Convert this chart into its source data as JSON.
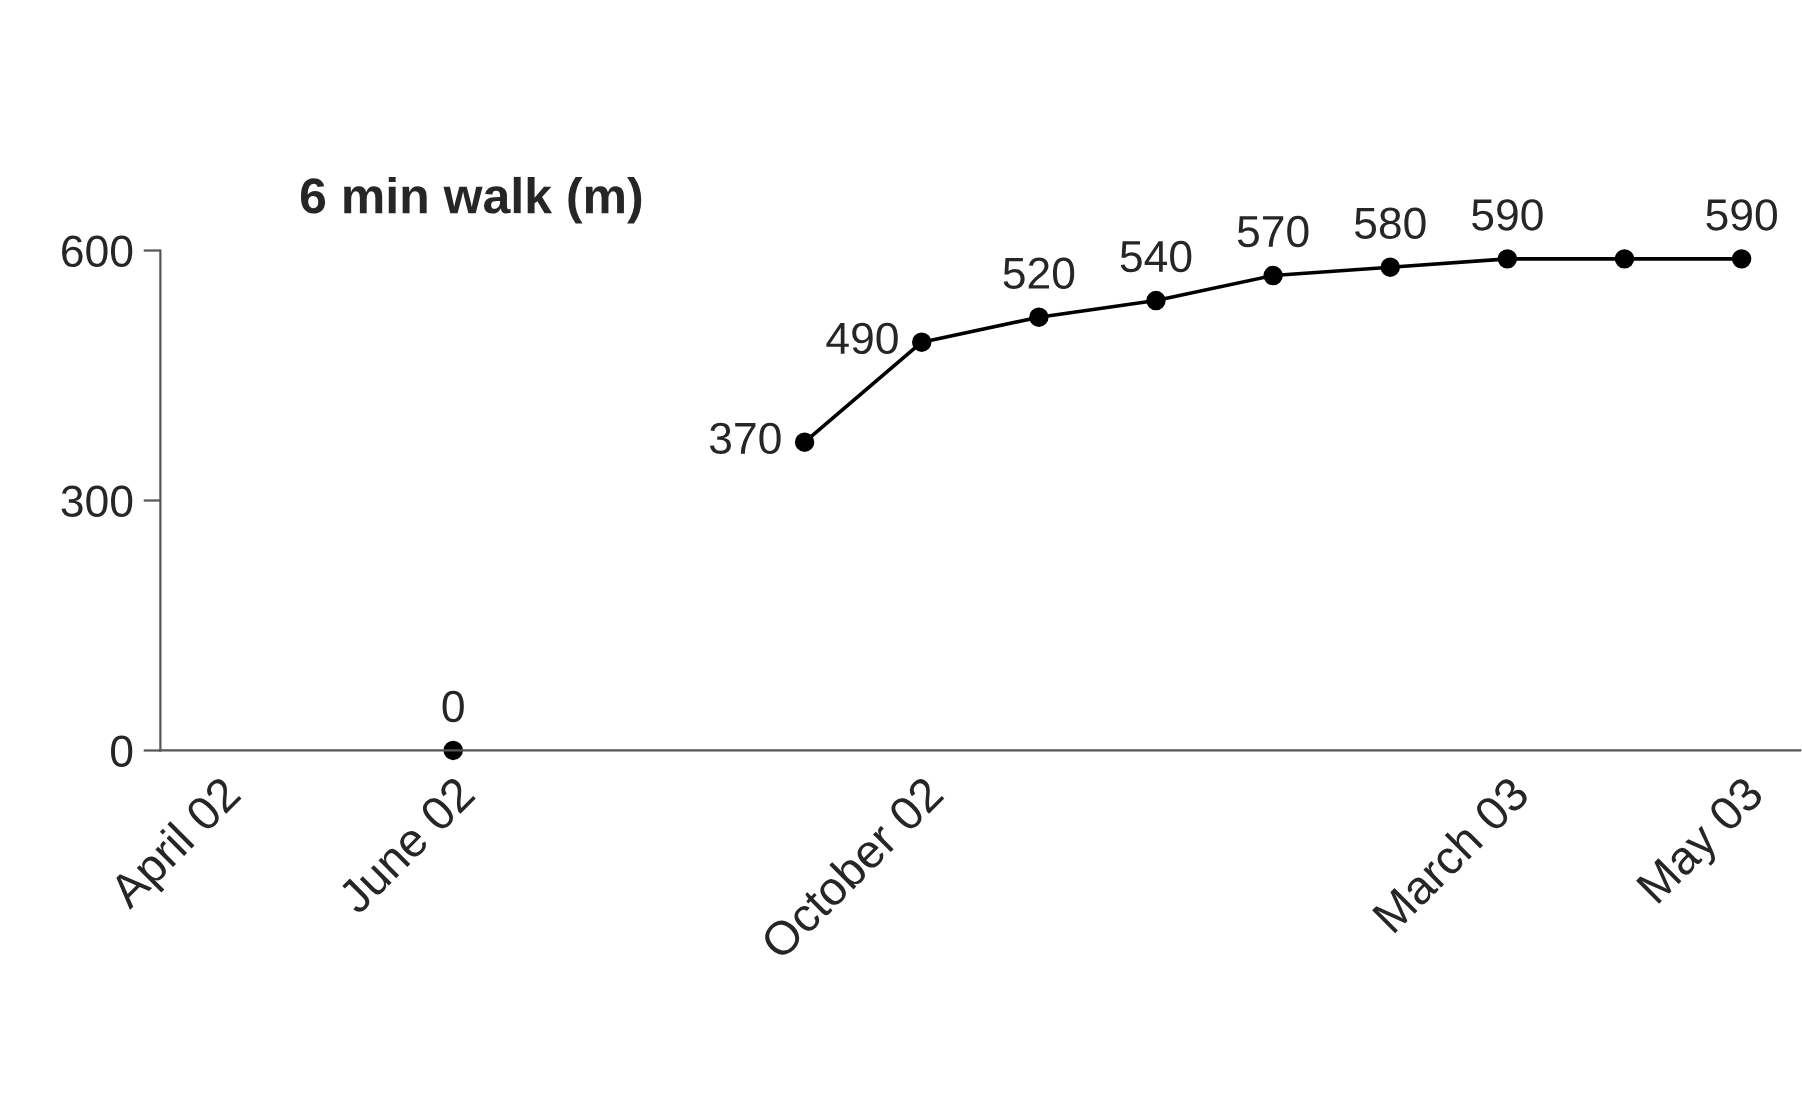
{
  "chart_data": {
    "type": "line",
    "title": "6 min walk (m)",
    "categories": [
      "April 02",
      null,
      "June 02",
      null,
      null,
      null,
      "October 02",
      null,
      null,
      null,
      null,
      "March 03",
      null,
      "May 03"
    ],
    "series": [
      {
        "color": "#000000",
        "values": [
          null,
          null,
          0,
          null,
          null,
          370,
          490,
          520,
          540,
          570,
          580,
          590,
          590,
          590
        ],
        "value_labels": [
          null,
          null,
          "0",
          null,
          null,
          "370",
          "490",
          "520",
          "540",
          "570",
          "580",
          "590",
          null,
          "590"
        ]
      }
    ],
    "ylim": [
      0,
      600
    ],
    "yticks": [
      0,
      300,
      600
    ],
    "grid": false,
    "legend": false,
    "marker": "circle",
    "line_style": "solid"
  }
}
